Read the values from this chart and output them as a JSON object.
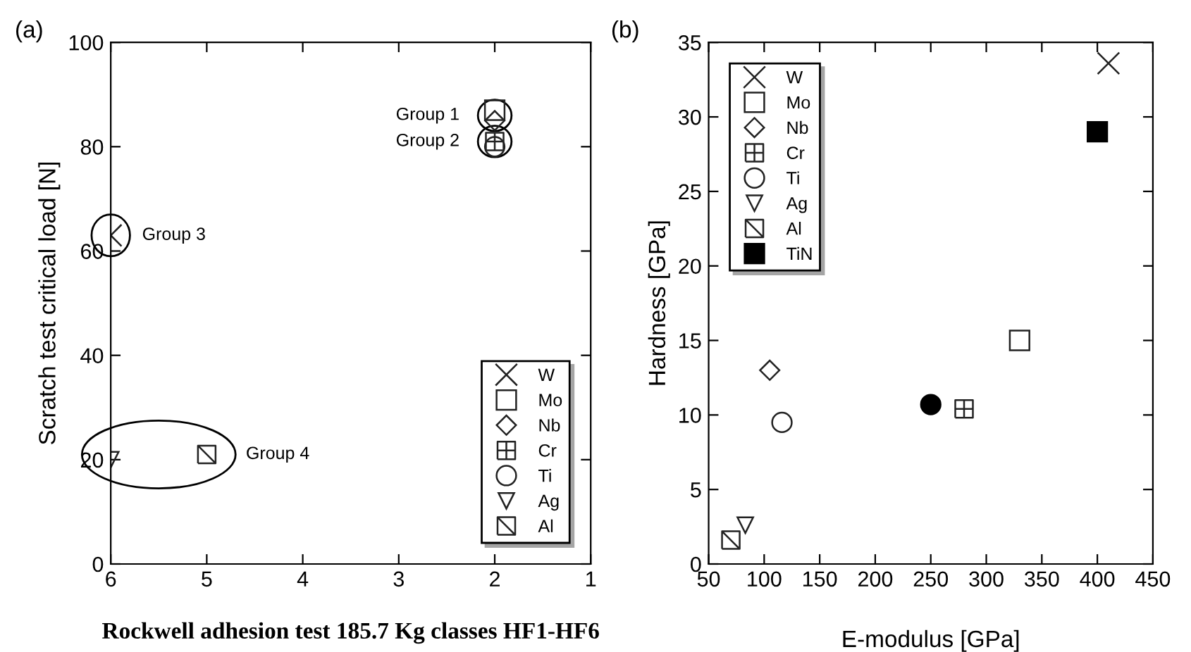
{
  "chart_data": [
    {
      "type": "scatter",
      "xlabel": "Rockwell adhesion test 185.7 Kg classes HF1-HF6",
      "ylabel": "Scratch test critical load [N]",
      "xlim": [
        6,
        1
      ],
      "ylim": [
        0,
        100
      ],
      "xticks": [
        6,
        5,
        4,
        3,
        2,
        1
      ],
      "yticks": [
        0,
        20,
        40,
        60,
        80,
        100
      ],
      "grid": false,
      "legend": "bottom right",
      "series": [
        {
          "name": "W",
          "color": "#222222",
          "marker": "cross",
          "x": [
            6
          ],
          "values": [
            63
          ]
        },
        {
          "name": "Mo",
          "color": "#222222",
          "marker": "square",
          "x": [
            2
          ],
          "values": [
            87
          ]
        },
        {
          "name": "Nb",
          "color": "#222222",
          "marker": "diamond",
          "x": [
            2
          ],
          "values": [
            85
          ]
        },
        {
          "name": "Cr",
          "color": "#222222",
          "x": [
            2
          ],
          "values": [
            81
          ]
        },
        {
          "name": "Ti",
          "color": "#222222",
          "marker": "circle",
          "x": [
            2
          ],
          "values": [
            80
          ]
        },
        {
          "name": "Ag",
          "color": "#222222",
          "marker": "triangle",
          "x": [
            6
          ],
          "values": [
            20
          ]
        },
        {
          "name": "Al",
          "color": "#222222",
          "x": [
            5
          ],
          "values": [
            21
          ]
        }
      ],
      "annotations": [
        "(a)",
        {
          "text": "Group 1",
          "x": 2,
          "y": 86
        },
        {
          "text": "Group 2",
          "x": 2,
          "y": 81
        },
        {
          "text": "Group 3",
          "x": 6,
          "y": 63
        },
        {
          "text": "Group 4",
          "x": 5,
          "y": 21
        }
      ]
    },
    {
      "type": "scatter",
      "xlabel": "E-modulus [GPa]",
      "ylabel": "Hardness [GPa]",
      "xlim": [
        50,
        450
      ],
      "ylim": [
        0,
        35
      ],
      "xticks": [
        50,
        100,
        150,
        200,
        250,
        300,
        350,
        400,
        450
      ],
      "yticks": [
        0,
        5,
        10,
        15,
        20,
        25,
        30,
        35
      ],
      "grid": false,
      "legend": "top left",
      "series": [
        {
          "name": "W",
          "color": "#222222",
          "marker": "cross",
          "x": [
            410
          ],
          "values": [
            33.6
          ]
        },
        {
          "name": "Mo",
          "color": "#222222",
          "marker": "square",
          "x": [
            330
          ],
          "values": [
            15
          ]
        },
        {
          "name": "Nb",
          "color": "#222222",
          "marker": "diamond",
          "x": [
            105
          ],
          "values": [
            13
          ]
        },
        {
          "name": "Cr",
          "color": "#222222",
          "x": [
            280
          ],
          "values": [
            10.4
          ]
        },
        {
          "name": "Ti",
          "color": "#222222",
          "marker": "circle",
          "x": [
            116
          ],
          "values": [
            9.5
          ]
        },
        {
          "name": "Ag",
          "color": "#222222",
          "marker": "triangle",
          "x": [
            83
          ],
          "values": [
            2.6
          ]
        },
        {
          "name": "Al",
          "color": "#222222",
          "x": [
            70
          ],
          "values": [
            1.6
          ]
        },
        {
          "color": "#000000",
          "marker": "circle",
          "x": [
            250
          ],
          "values": [
            10.7
          ]
        },
        {
          "name": "TiN",
          "color": "#000000",
          "marker": "square",
          "x": [
            400
          ],
          "values": [
            29
          ]
        }
      ],
      "annotations": [
        "(b)"
      ]
    }
  ]
}
